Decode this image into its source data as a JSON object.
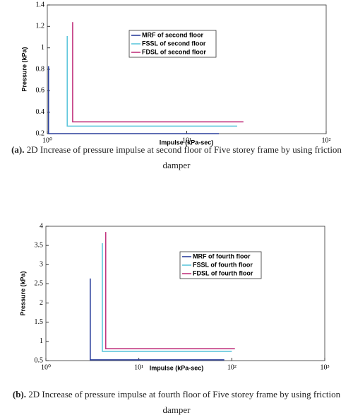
{
  "chart_data": [
    {
      "type": "line",
      "xscale": "log",
      "xlabel": "Impulse (kPa-sec)",
      "ylabel": "Pressure (kPa)",
      "xlim": [
        1,
        100
      ],
      "xticks": [
        {
          "value": 1,
          "label": "10⁰"
        },
        {
          "value": 10,
          "label": "10¹"
        },
        {
          "value": 100,
          "label": "10²"
        }
      ],
      "ylim": [
        0.2,
        1.4
      ],
      "yticks": [
        0.2,
        0.4,
        0.6,
        0.8,
        1,
        1.2,
        1.4
      ],
      "series": [
        {
          "name": "MRF of second floor",
          "color": "#2b3f9c",
          "x": [
            1.02,
            1.02,
            17
          ],
          "values": [
            0.83,
            0.2,
            0.2
          ]
        },
        {
          "name": "FSSL of second floor",
          "color": "#5ec6dc",
          "x": [
            1.39,
            1.39,
            23
          ],
          "values": [
            1.11,
            0.27,
            0.27
          ]
        },
        {
          "name": "FDSL of second floor",
          "color": "#c2367f",
          "x": [
            1.52,
            1.52,
            25.5
          ],
          "values": [
            1.24,
            0.31,
            0.31
          ]
        }
      ],
      "caption_label": "(a).",
      "caption": "2D Increase of pressure impulse at second floor of  Five storey frame by using friction damper"
    },
    {
      "type": "line",
      "xscale": "log",
      "xlabel": "Impulse (kPa-sec)",
      "ylabel": "Pressure (kPa)",
      "xlim": [
        1,
        1000
      ],
      "xticks": [
        {
          "value": 1,
          "label": "10⁰"
        },
        {
          "value": 10,
          "label": "10¹"
        },
        {
          "value": 100,
          "label": "10²"
        },
        {
          "value": 1000,
          "label": "10³"
        }
      ],
      "ylim": [
        0.5,
        4
      ],
      "yticks": [
        0.5,
        1,
        1.5,
        2,
        2.5,
        3,
        3.5,
        4
      ],
      "series": [
        {
          "name": "MRF of fourth floor",
          "color": "#2b3f9c",
          "x": [
            3,
            3,
            83
          ],
          "values": [
            2.64,
            0.52,
            0.52
          ]
        },
        {
          "name": "FSSL of fourth floor",
          "color": "#5ec6dc",
          "x": [
            4.05,
            4.05,
            100
          ],
          "values": [
            3.56,
            0.74,
            0.74
          ]
        },
        {
          "name": "FDSL of fourth floor",
          "color": "#c2367f",
          "x": [
            4.4,
            4.4,
            108
          ],
          "values": [
            3.85,
            0.81,
            0.81
          ]
        }
      ],
      "caption_label": "(b).",
      "caption": "2D Increase of pressure impulse at fourth floor of Five storey frame by using friction damper"
    }
  ]
}
